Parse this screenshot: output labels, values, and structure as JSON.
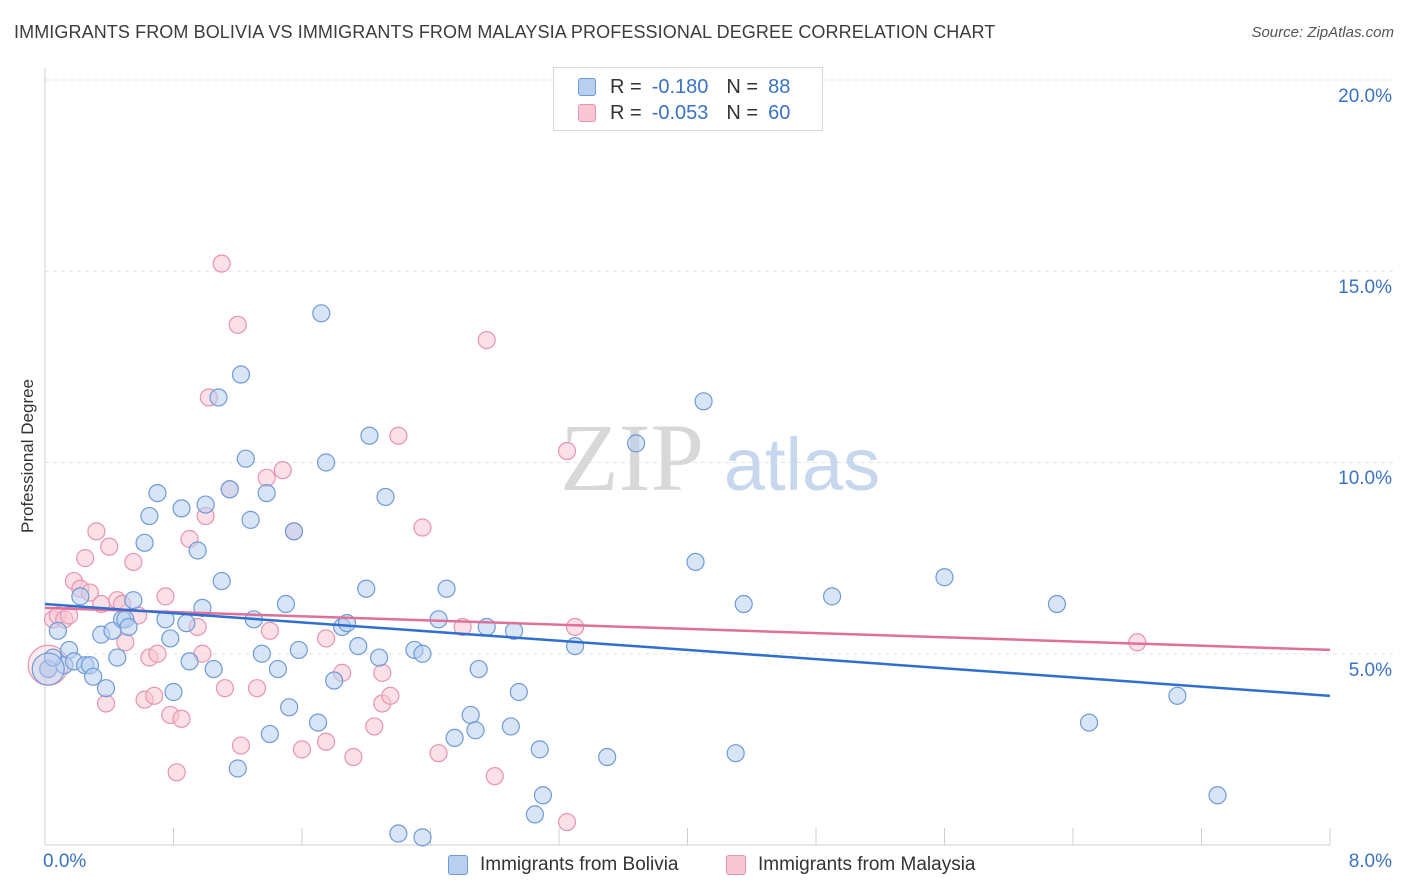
{
  "header": {
    "title": "IMMIGRANTS FROM BOLIVIA VS IMMIGRANTS FROM MALAYSIA PROFESSIONAL DEGREE CORRELATION CHART",
    "source": "Source: ZipAtlas.com"
  },
  "watermark": {
    "zip": "ZIP",
    "atlas": "atlas"
  },
  "legend_top": {
    "rows": [
      {
        "r_label": "R =",
        "r_value": "-0.180",
        "n_label": "N =",
        "n_value": "88"
      },
      {
        "r_label": "R =",
        "r_value": "-0.053",
        "n_label": "N =",
        "n_value": "60"
      }
    ]
  },
  "legend_bottom": {
    "bolivia": "Immigrants from Bolivia",
    "malaysia": "Immigrants from Malaysia"
  },
  "axis_text": {
    "y_label": "Professional Degree",
    "x_min": "0.0%",
    "x_max": "8.0%",
    "y_ticks": [
      "20.0%",
      "15.0%",
      "10.0%",
      "5.0%"
    ]
  },
  "colors": {
    "bolivia_fill": "#b8cff0",
    "bolivia_stroke": "#6f9ad8",
    "bolivia_line": "#2f6fd0",
    "malaysia_fill": "#f8c6d4",
    "malaysia_stroke": "#e894ae",
    "malaysia_line": "#e0709a",
    "tick_label": "#3a72c4",
    "grid": "#e3e3e3"
  },
  "chart_data": {
    "type": "scatter",
    "title": "IMMIGRANTS FROM BOLIVIA VS IMMIGRANTS FROM MALAYSIA PROFESSIONAL DEGREE CORRELATION CHART",
    "xlabel": "",
    "ylabel": "Professional Degree",
    "xlim": [
      0,
      8
    ],
    "ylim": [
      0,
      20
    ],
    "y_gridlines": [
      5,
      10,
      15,
      20
    ],
    "series": [
      {
        "name": "Immigrants from Bolivia",
        "r": -0.18,
        "n": 88,
        "trend": [
          [
            0,
            6.3
          ],
          [
            8,
            3.9
          ]
        ],
        "points": [
          [
            0.02,
            4.6
          ],
          [
            0.08,
            5.6
          ],
          [
            0.12,
            4.7
          ],
          [
            0.15,
            5.1
          ],
          [
            0.18,
            4.8
          ],
          [
            0.22,
            6.5
          ],
          [
            0.25,
            4.7
          ],
          [
            0.28,
            4.7
          ],
          [
            0.3,
            4.4
          ],
          [
            0.35,
            5.5
          ],
          [
            0.38,
            4.1
          ],
          [
            0.42,
            5.6
          ],
          [
            0.45,
            4.9
          ],
          [
            0.48,
            5.9
          ],
          [
            0.5,
            5.9
          ],
          [
            0.52,
            5.7
          ],
          [
            0.55,
            6.4
          ],
          [
            0.62,
            7.9
          ],
          [
            0.65,
            8.6
          ],
          [
            0.7,
            9.2
          ],
          [
            0.75,
            5.9
          ],
          [
            0.78,
            5.4
          ],
          [
            0.8,
            4.0
          ],
          [
            0.85,
            8.8
          ],
          [
            0.88,
            5.8
          ],
          [
            0.9,
            4.8
          ],
          [
            0.95,
            7.7
          ],
          [
            0.98,
            6.2
          ],
          [
            1.0,
            8.9
          ],
          [
            1.05,
            4.6
          ],
          [
            1.08,
            11.7
          ],
          [
            1.1,
            6.9
          ],
          [
            1.15,
            9.3
          ],
          [
            1.2,
            2.0
          ],
          [
            1.22,
            12.3
          ],
          [
            1.25,
            10.1
          ],
          [
            1.28,
            8.5
          ],
          [
            1.3,
            5.9
          ],
          [
            1.35,
            5.0
          ],
          [
            1.38,
            9.2
          ],
          [
            1.4,
            2.9
          ],
          [
            1.45,
            4.6
          ],
          [
            1.5,
            6.3
          ],
          [
            1.52,
            3.6
          ],
          [
            1.55,
            8.2
          ],
          [
            1.58,
            5.1
          ],
          [
            1.7,
            3.2
          ],
          [
            1.72,
            13.9
          ],
          [
            1.75,
            10.0
          ],
          [
            1.8,
            4.3
          ],
          [
            1.85,
            5.7
          ],
          [
            1.88,
            5.8
          ],
          [
            1.95,
            5.2
          ],
          [
            2.0,
            6.7
          ],
          [
            2.02,
            10.7
          ],
          [
            2.08,
            4.9
          ],
          [
            2.12,
            9.1
          ],
          [
            2.2,
            0.3
          ],
          [
            2.3,
            5.1
          ],
          [
            2.35,
            5.0
          ],
          [
            2.35,
            0.2
          ],
          [
            2.45,
            5.9
          ],
          [
            2.5,
            6.7
          ],
          [
            2.55,
            2.8
          ],
          [
            2.65,
            3.4
          ],
          [
            2.68,
            3.0
          ],
          [
            2.7,
            4.6
          ],
          [
            2.75,
            5.7
          ],
          [
            2.9,
            3.1
          ],
          [
            2.92,
            5.6
          ],
          [
            2.95,
            4.0
          ],
          [
            3.05,
            0.8
          ],
          [
            3.08,
            2.5
          ],
          [
            3.1,
            1.3
          ],
          [
            3.3,
            5.2
          ],
          [
            3.5,
            2.3
          ],
          [
            3.68,
            10.5
          ],
          [
            4.05,
            7.4
          ],
          [
            4.1,
            11.6
          ],
          [
            4.3,
            2.4
          ],
          [
            4.35,
            6.3
          ],
          [
            4.9,
            6.5
          ],
          [
            5.6,
            7.0
          ],
          [
            6.3,
            6.3
          ],
          [
            6.5,
            3.2
          ],
          [
            7.05,
            3.9
          ],
          [
            7.3,
            1.3
          ],
          [
            0.05,
            4.9
          ]
        ]
      },
      {
        "name": "Immigrants from Malaysia",
        "r": -0.053,
        "n": 60,
        "trend": [
          [
            0,
            6.2
          ],
          [
            8,
            5.1
          ]
        ],
        "points": [
          [
            0.05,
            5.9
          ],
          [
            0.08,
            6.0
          ],
          [
            0.12,
            5.9
          ],
          [
            0.15,
            6.0
          ],
          [
            0.18,
            6.9
          ],
          [
            0.22,
            6.7
          ],
          [
            0.25,
            7.5
          ],
          [
            0.28,
            6.6
          ],
          [
            0.32,
            8.2
          ],
          [
            0.35,
            6.3
          ],
          [
            0.38,
            3.7
          ],
          [
            0.4,
            7.8
          ],
          [
            0.45,
            6.4
          ],
          [
            0.48,
            6.3
          ],
          [
            0.5,
            5.3
          ],
          [
            0.55,
            7.4
          ],
          [
            0.58,
            6.0
          ],
          [
            0.62,
            3.8
          ],
          [
            0.65,
            4.9
          ],
          [
            0.68,
            3.9
          ],
          [
            0.7,
            5.0
          ],
          [
            0.75,
            6.5
          ],
          [
            0.78,
            3.4
          ],
          [
            0.82,
            1.9
          ],
          [
            0.85,
            3.3
          ],
          [
            0.9,
            8.0
          ],
          [
            0.95,
            5.7
          ],
          [
            0.98,
            5.0
          ],
          [
            1.0,
            8.6
          ],
          [
            1.02,
            11.7
          ],
          [
            1.1,
            15.2
          ],
          [
            1.12,
            4.1
          ],
          [
            1.15,
            9.3
          ],
          [
            1.2,
            13.6
          ],
          [
            1.22,
            2.6
          ],
          [
            1.32,
            4.1
          ],
          [
            1.38,
            9.6
          ],
          [
            1.4,
            5.6
          ],
          [
            1.48,
            9.8
          ],
          [
            1.55,
            8.2
          ],
          [
            1.6,
            2.5
          ],
          [
            1.75,
            5.4
          ],
          [
            1.75,
            2.7
          ],
          [
            1.85,
            4.5
          ],
          [
            1.92,
            2.3
          ],
          [
            2.05,
            3.1
          ],
          [
            2.1,
            4.5
          ],
          [
            2.1,
            3.7
          ],
          [
            2.15,
            3.9
          ],
          [
            2.2,
            10.7
          ],
          [
            2.35,
            8.3
          ],
          [
            2.45,
            2.4
          ],
          [
            2.6,
            5.7
          ],
          [
            2.75,
            13.2
          ],
          [
            2.8,
            1.8
          ],
          [
            3.25,
            10.3
          ],
          [
            3.25,
            0.6
          ],
          [
            3.3,
            5.7
          ],
          [
            6.8,
            5.3
          ],
          [
            0.02,
            4.6
          ]
        ]
      }
    ]
  }
}
